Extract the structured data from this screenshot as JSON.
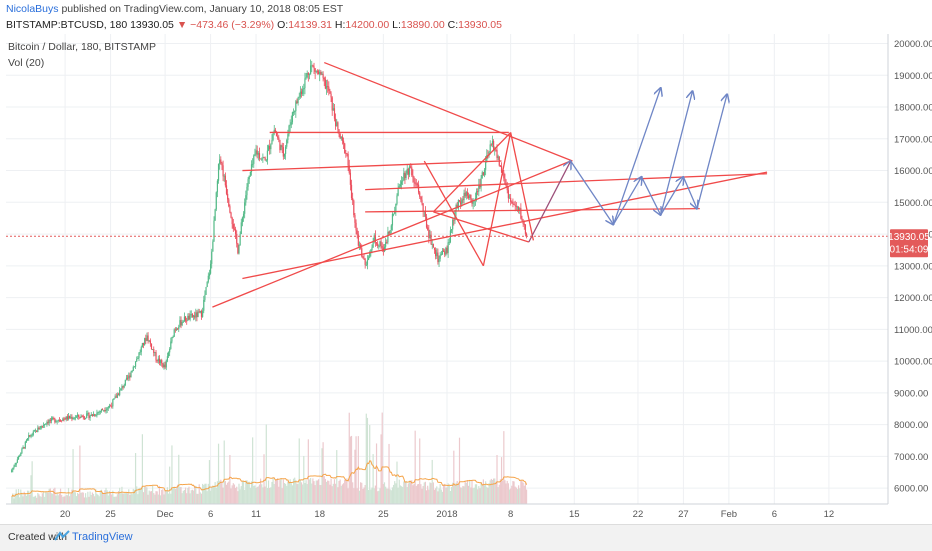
{
  "header": {
    "author": "NicolaBuys",
    "published_text": "published on TradingView.com, January 10, 2018 08:05 EST",
    "symbol": "BITSTAMP:BTCUSD, 180",
    "last": "13930.05",
    "change": "▼ −473.46 (−3.29%)",
    "o_label": "O:",
    "o_value": "14139.31",
    "h_label": "H:",
    "h_value": "14200.00",
    "l_label": "L:",
    "l_value": "13890.00",
    "c_label": "C:",
    "c_value": "13930.05"
  },
  "legend": {
    "title": "Bitcoin / Dollar, 180, BITSTAMP",
    "volume": "Vol (20)"
  },
  "price_tag": {
    "price": "13930.05",
    "countdown": "01:54:09"
  },
  "footer": {
    "created": "Created with",
    "brand": "TradingView"
  },
  "chart_data": {
    "type": "candlestick",
    "ylim": [
      5500,
      20300
    ],
    "ytick_values": [
      6000,
      7000,
      8000,
      9000,
      10000,
      11000,
      12000,
      13000,
      14000,
      15000,
      16000,
      17000,
      18000,
      19000,
      20000
    ],
    "ytick_labels": [
      "6000.00",
      "7000.00",
      "8000.00",
      "9000.00",
      "10000.00",
      "11000.00",
      "12000.00",
      "13000.00",
      "14000.00",
      "15000.00",
      "16000.00",
      "17000.00",
      "18000.00",
      "19000.00",
      "20000.00"
    ],
    "xticks": [
      {
        "label": "20",
        "day": -11
      },
      {
        "label": "25",
        "day": -6
      },
      {
        "label": "Dec",
        "day": 0
      },
      {
        "label": "6",
        "day": 5
      },
      {
        "label": "11",
        "day": 10
      },
      {
        "label": "18",
        "day": 17
      },
      {
        "label": "25",
        "day": 24
      },
      {
        "label": "2018",
        "day": 31
      },
      {
        "label": "8",
        "day": 38
      },
      {
        "label": "15",
        "day": 45
      },
      {
        "label": "22",
        "day": 52
      },
      {
        "label": "27",
        "day": 57
      },
      {
        "label": "Feb",
        "day": 62
      },
      {
        "label": "6",
        "day": 67
      },
      {
        "label": "12",
        "day": 73
      }
    ],
    "current_price": 13930.05,
    "price_path": [
      [
        -17,
        6500
      ],
      [
        -15,
        7600
      ],
      [
        -13,
        8100
      ],
      [
        -11,
        8200
      ],
      [
        -8,
        8300
      ],
      [
        -6,
        8600
      ],
      [
        -4,
        9500
      ],
      [
        -2,
        10800
      ],
      [
        -1,
        10100
      ],
      [
        0,
        9800
      ],
      [
        1,
        11000
      ],
      [
        2,
        11300
      ],
      [
        3,
        11400
      ],
      [
        4,
        11500
      ],
      [
        5,
        13000
      ],
      [
        6,
        16500
      ],
      [
        7,
        15000
      ],
      [
        8,
        13500
      ],
      [
        9,
        15500
      ],
      [
        10,
        16600
      ],
      [
        11,
        16300
      ],
      [
        12,
        17300
      ],
      [
        13,
        16500
      ],
      [
        14,
        17800
      ],
      [
        16,
        19300
      ],
      [
        17,
        19000
      ],
      [
        18,
        18500
      ],
      [
        19,
        17200
      ],
      [
        20,
        16500
      ],
      [
        21,
        14000
      ],
      [
        22,
        13000
      ],
      [
        23,
        13900
      ],
      [
        24,
        13500
      ],
      [
        25,
        14500
      ],
      [
        26,
        15800
      ],
      [
        27,
        16100
      ],
      [
        28,
        15200
      ],
      [
        29,
        14000
      ],
      [
        30,
        13200
      ],
      [
        31,
        13500
      ],
      [
        32,
        14800
      ],
      [
        33,
        15300
      ],
      [
        34,
        15000
      ],
      [
        35,
        16000
      ],
      [
        36,
        16900
      ],
      [
        37,
        16000
      ],
      [
        38,
        15000
      ],
      [
        39,
        14700
      ],
      [
        39.8,
        13930
      ]
    ],
    "annotation_lines": [
      [
        [
          17.5,
          19400
        ],
        [
          44.8,
          16300
        ]
      ],
      [
        [
          5.2,
          11700
        ],
        [
          44.6,
          16300
        ]
      ],
      [
        [
          11.5,
          17200
        ],
        [
          37.8,
          17200
        ]
      ],
      [
        [
          8.5,
          16000
        ],
        [
          37.0,
          16300
        ]
      ],
      [
        [
          22.0,
          15400
        ],
        [
          66.2,
          15900
        ]
      ],
      [
        [
          22.0,
          14700
        ],
        [
          58.8,
          14800
        ]
      ],
      [
        [
          8.5,
          12600
        ],
        [
          66.2,
          15950
        ]
      ],
      [
        [
          28.5,
          16300
        ],
        [
          35.0,
          13000
        ]
      ],
      [
        [
          35.0,
          13000
        ],
        [
          38.0,
          17200
        ]
      ],
      [
        [
          38.0,
          17200
        ],
        [
          40.5,
          13800
        ]
      ],
      [
        [
          38.0,
          17200
        ],
        [
          29.5,
          14700
        ]
      ],
      [
        [
          29.5,
          14700
        ],
        [
          40.0,
          13750
        ]
      ]
    ],
    "projection_path": [
      [
        40.0,
        13750
      ],
      [
        44.6,
        16300
      ],
      [
        49.3,
        14300
      ],
      [
        52.4,
        15800
      ],
      [
        54.5,
        14600
      ],
      [
        57.0,
        15800
      ],
      [
        58.5,
        14800
      ]
    ],
    "projection_arrows": [
      [
        [
          49.3,
          14300
        ],
        [
          54.5,
          18600
        ]
      ],
      [
        [
          54.5,
          14600
        ],
        [
          58.0,
          18500
        ]
      ],
      [
        [
          58.5,
          14800
        ],
        [
          61.8,
          18400
        ]
      ]
    ],
    "colors": {
      "up": "#53b987",
      "down": "#eb4d5c",
      "trendline": "#f04a4a",
      "projection": "#6f86c6",
      "volume_ma": "#f5a449",
      "volume": "#c9dccf",
      "price_line": "#e35a5a",
      "price_tag": "#e35a5a"
    }
  }
}
